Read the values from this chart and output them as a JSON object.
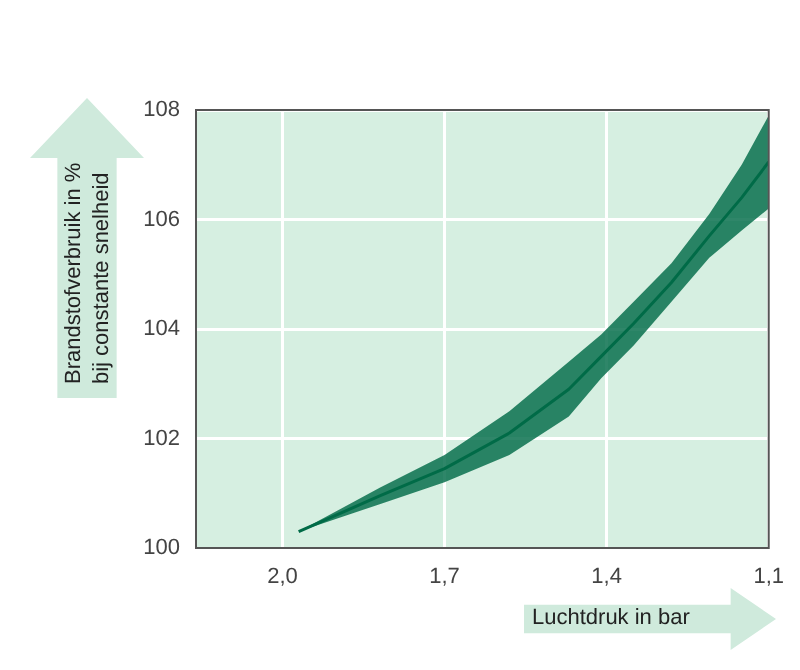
{
  "chart_data": {
    "type": "line",
    "xlabel": "Luchtdruk in bar",
    "ylabel": "Brandstofverbruik in %\nbij constante snelheid",
    "xlim": [
      2.16,
      1.1
    ],
    "xticks": [
      {
        "value": 2.0,
        "label": "2,0"
      },
      {
        "value": 1.7,
        "label": "1,7"
      },
      {
        "value": 1.4,
        "label": "1,4"
      },
      {
        "value": 1.1,
        "label": "1,1"
      }
    ],
    "ylim": [
      100,
      108
    ],
    "yticks": [
      100,
      102,
      104,
      106,
      108
    ],
    "grid": true,
    "series": [
      {
        "color": "#006b47",
        "x": [
          1.97,
          1.82,
          1.7,
          1.58,
          1.47,
          1.41,
          1.35,
          1.28,
          1.21,
          1.15,
          1.1
        ],
        "values": [
          100.3,
          100.95,
          101.45,
          102.1,
          102.9,
          103.5,
          104.1,
          104.85,
          105.7,
          106.4,
          107.05
        ],
        "upper": [
          100.3,
          101.1,
          101.7,
          102.5,
          103.4,
          103.9,
          104.5,
          105.2,
          106.1,
          107.0,
          107.9
        ],
        "lower": [
          100.3,
          100.8,
          101.2,
          101.7,
          102.4,
          103.1,
          103.7,
          104.5,
          105.3,
          105.8,
          106.2
        ]
      }
    ]
  }
}
